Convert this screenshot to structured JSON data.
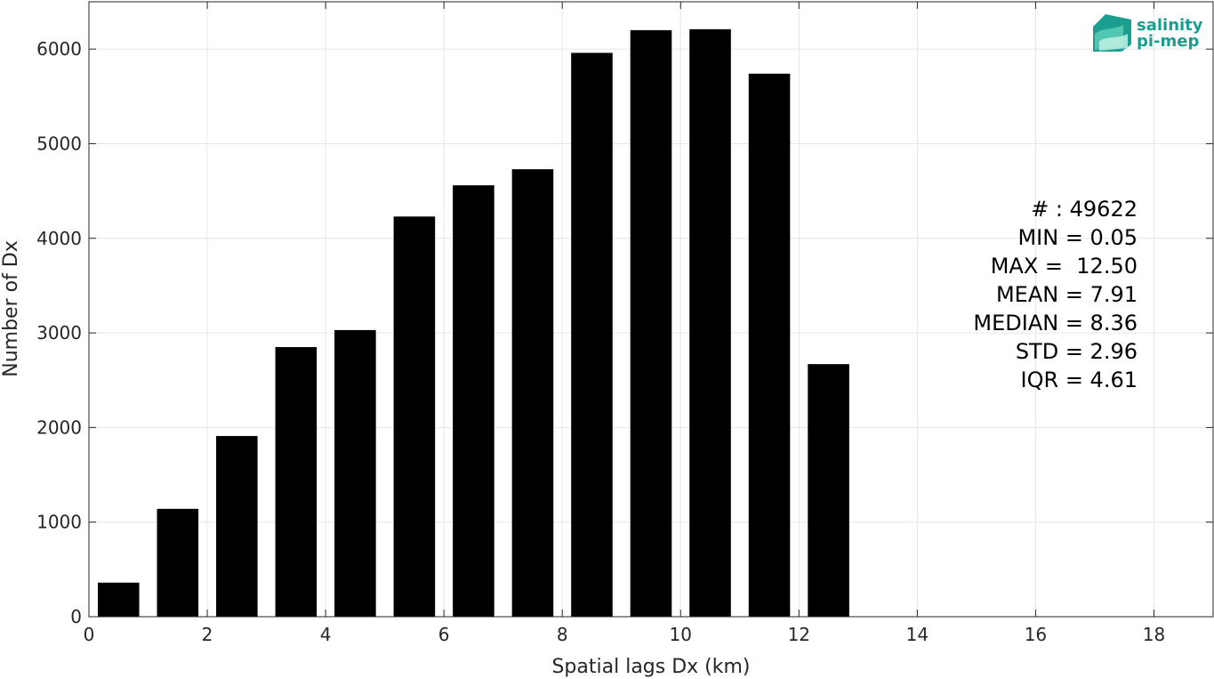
{
  "chart_data": {
    "type": "bar",
    "title": "",
    "xlabel": "Spatial lags Dx (km)",
    "ylabel": "Number of Dx",
    "xlim": [
      0,
      19
    ],
    "ylim": [
      0,
      6500
    ],
    "xticks": [
      0,
      2,
      4,
      6,
      8,
      10,
      12,
      14,
      16,
      18
    ],
    "yticks": [
      0,
      1000,
      2000,
      3000,
      4000,
      5000,
      6000
    ],
    "grid": true,
    "bar_width": 0.7,
    "bar_color": "#000000",
    "x": [
      0.5,
      1.5,
      2.5,
      3.5,
      4.5,
      5.5,
      6.5,
      7.5,
      8.5,
      9.5,
      10.5,
      11.5,
      12.5
    ],
    "values": [
      360,
      1140,
      1910,
      2850,
      3030,
      4230,
      4560,
      4730,
      5960,
      6200,
      6210,
      5740,
      2670
    ],
    "annotations": [
      "# : 49622",
      "MIN = 0.05",
      "MAX =  12.50",
      "MEAN = 7.91",
      "MEDIAN = 8.36",
      "STD = 2.96",
      "IQR = 4.61"
    ]
  },
  "logo": {
    "line1": "salinity",
    "line2": "pi-mep",
    "color": "#1a9e8f"
  }
}
